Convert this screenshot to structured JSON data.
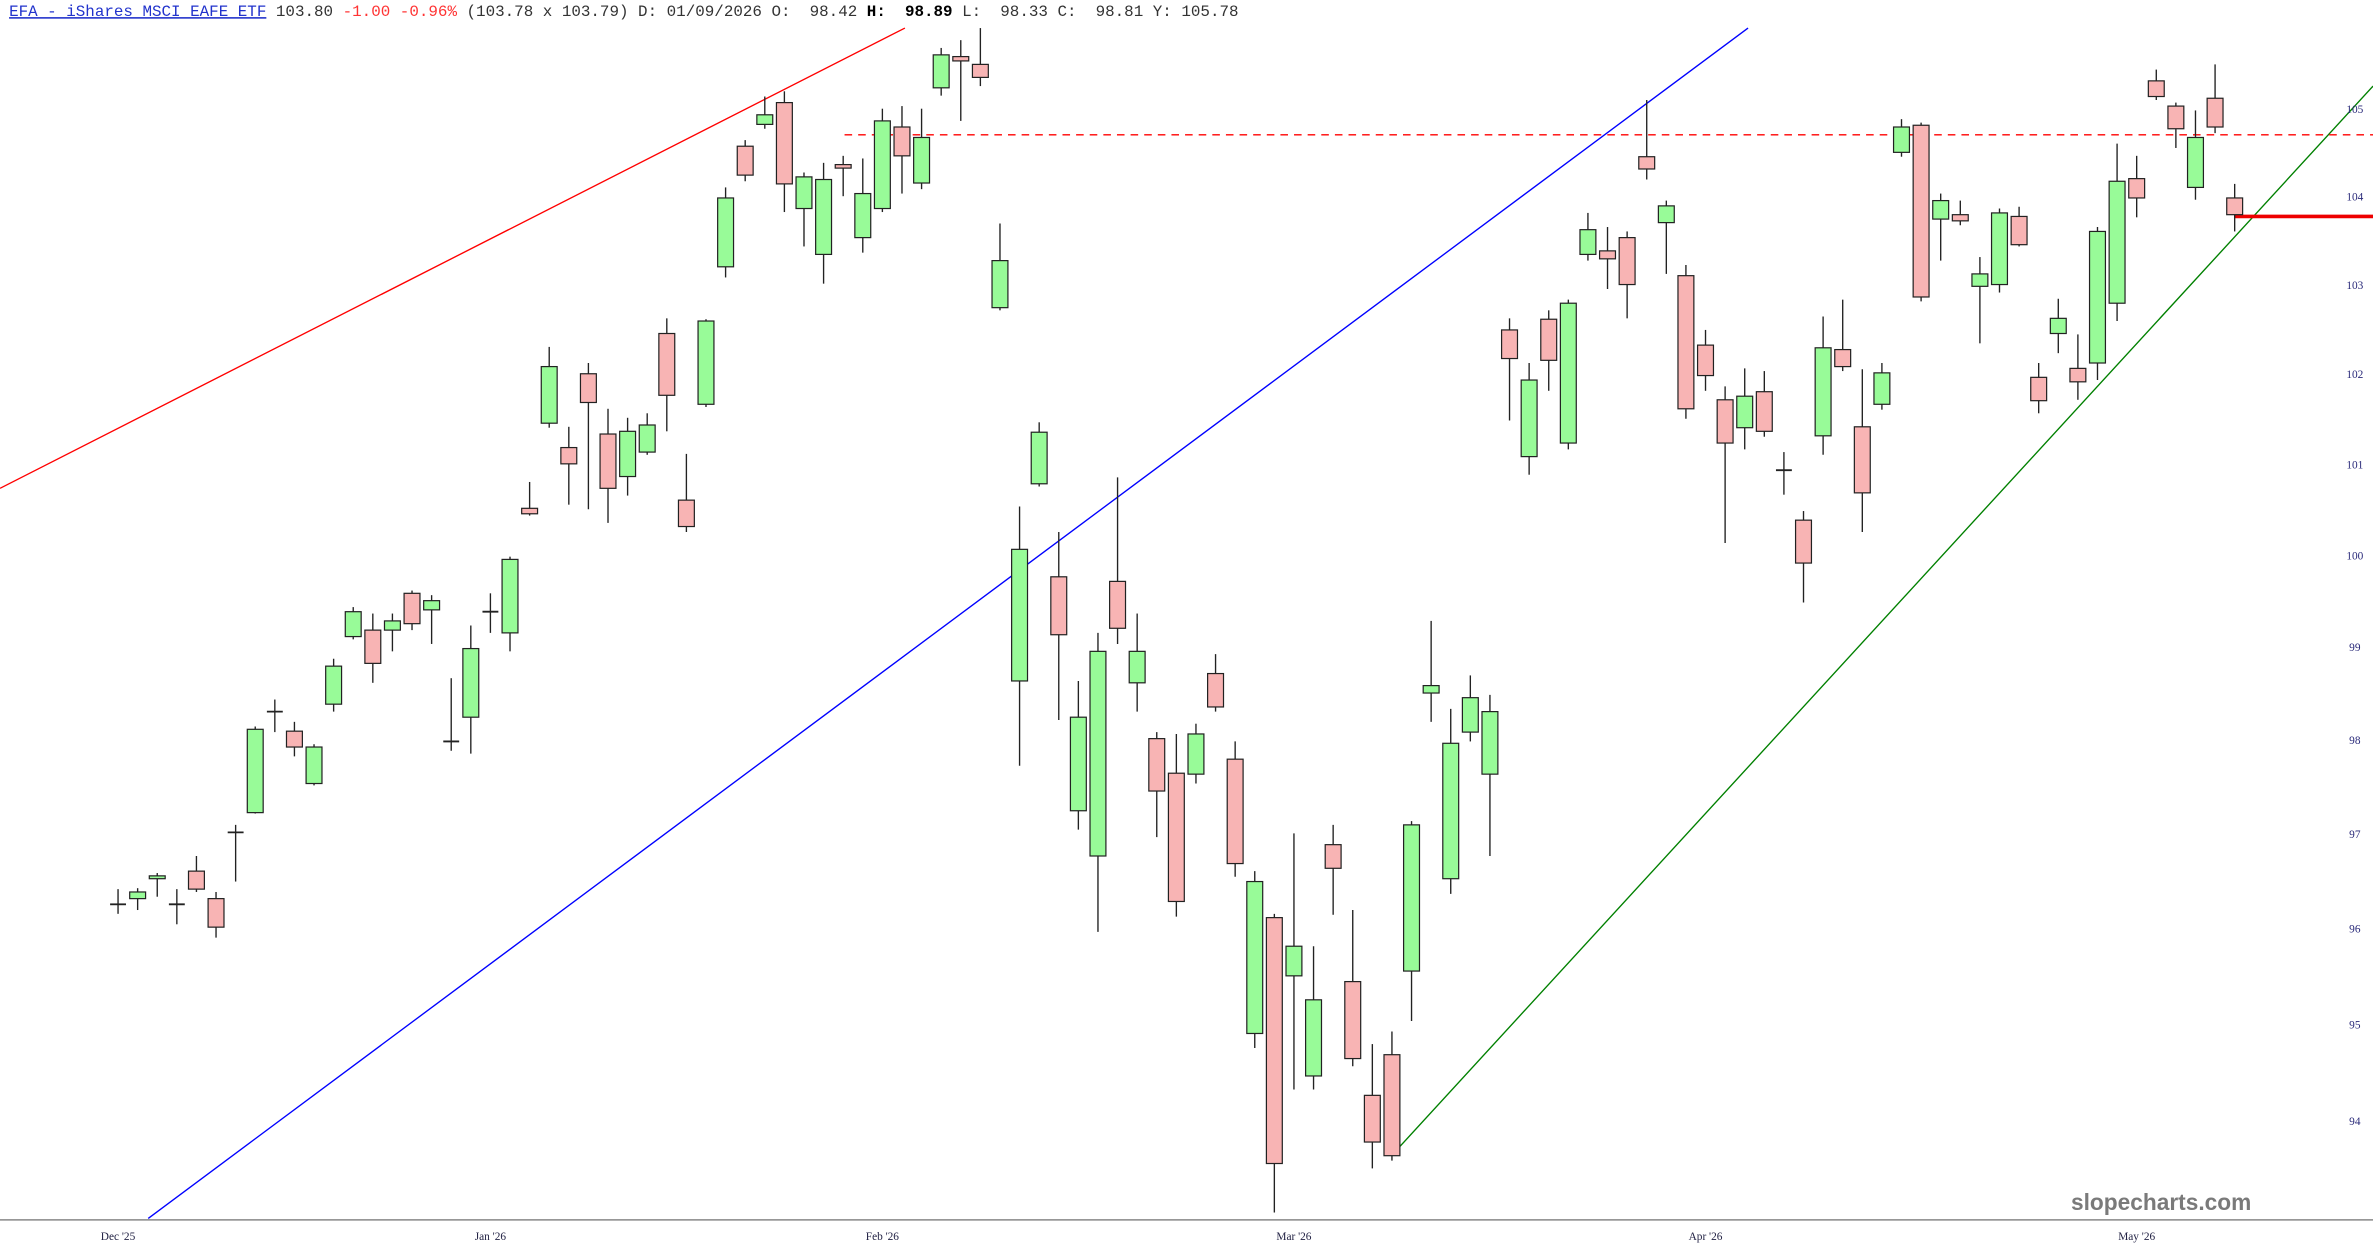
{
  "header": {
    "symbol": "EFA - iShares MSCI EAFE ETF",
    "last": "103.80",
    "change": "-1.00",
    "change_pct": "-0.96%",
    "bid_ask": "(103.78 x 103.79)",
    "date": "D: 01/09/2026",
    "fields": [
      {
        "label": "O:",
        "value": "98.42"
      },
      {
        "label": "H:",
        "value": "98.89"
      },
      {
        "label": "L:",
        "value": "98.33"
      },
      {
        "label": "C:",
        "value": "98.81"
      },
      {
        "label": "Y:",
        "value": "105.78"
      }
    ]
  },
  "chart_data": {
    "type": "candlestick",
    "watermark": "slopecharts.com",
    "up_color": "#98fb98",
    "down_color": "#f8b4b4",
    "log_scale": true,
    "ylim": [
      93,
      106
    ],
    "yticks": [
      94,
      95,
      96,
      97,
      98,
      99,
      100,
      101,
      102,
      103,
      104,
      105
    ],
    "categories": [
      "Dec '25",
      null,
      null,
      null,
      null,
      null,
      null,
      null,
      null,
      null,
      null,
      null,
      null,
      null,
      null,
      null,
      null,
      null,
      null,
      "Jan '26",
      null,
      null,
      null,
      null,
      null,
      null,
      null,
      null,
      null,
      null,
      null,
      null,
      null,
      null,
      null,
      null,
      null,
      null,
      null,
      "Feb '26",
      null,
      null,
      null,
      null,
      null,
      null,
      null,
      null,
      null,
      null,
      null,
      null,
      null,
      null,
      null,
      null,
      null,
      null,
      null,
      null,
      "Mar '26",
      null,
      null,
      null,
      null,
      null,
      null,
      null,
      null,
      null,
      null,
      null,
      null,
      null,
      null,
      null,
      null,
      null,
      null,
      null,
      null,
      "Apr '26",
      null,
      null,
      null,
      null,
      null,
      null,
      null,
      null,
      null,
      null,
      null,
      null,
      null,
      null,
      null,
      null,
      null,
      null,
      null,
      null,
      null,
      "May '26",
      null,
      null,
      null,
      null,
      null
    ],
    "open": [
      96.27,
      96.33,
      96.54,
      96.27,
      96.62,
      96.33,
      97.03,
      97.24,
      98.32,
      98.11,
      97.55,
      98.4,
      99.13,
      99.2,
      99.2,
      99.6,
      99.42,
      98.0,
      98.26,
      99.4,
      99.17,
      100.53,
      101.47,
      101.2,
      102.02,
      101.35,
      100.88,
      101.15,
      102.47,
      100.62,
      101.68,
      103.22,
      104.59,
      104.84,
      105.09,
      103.88,
      103.36,
      104.38,
      103.55,
      103.88,
      104.81,
      104.17,
      105.26,
      105.62,
      105.53,
      102.76,
      98.65,
      100.8,
      99.78,
      97.26,
      96.78,
      99.73,
      98.63,
      98.03,
      97.66,
      97.65,
      98.73,
      97.81,
      94.92,
      96.13,
      95.52,
      94.48,
      96.9,
      95.46,
      94.28,
      94.7,
      95.57,
      98.52,
      96.54,
      98.1,
      97.65,
      102.51,
      101.1,
      102.63,
      101.25,
      103.36,
      103.4,
      103.55,
      104.47,
      103.72,
      103.12,
      102.34,
      101.73,
      101.42,
      101.82,
      100.95,
      100.4,
      101.33,
      102.29,
      101.43,
      101.68,
      104.52,
      104.83,
      103.76,
      103.81,
      103.0,
      103.02,
      103.79,
      101.98,
      102.47,
      102.08,
      102.14,
      102.81,
      104.22,
      105.34,
      105.05,
      104.12,
      105.14,
      104.0
    ],
    "high": [
      96.43,
      96.44,
      96.6,
      96.43,
      96.78,
      96.4,
      97.11,
      98.16,
      98.45,
      98.21,
      97.97,
      98.89,
      99.45,
      99.38,
      99.38,
      99.63,
      99.58,
      98.68,
      99.25,
      99.6,
      100.0,
      100.82,
      102.32,
      101.43,
      102.14,
      101.63,
      101.53,
      101.58,
      102.64,
      101.13,
      102.63,
      104.12,
      104.66,
      105.16,
      105.22,
      104.29,
      104.4,
      104.48,
      104.45,
      105.02,
      105.05,
      105.02,
      105.72,
      105.81,
      105.95,
      103.71,
      100.55,
      101.48,
      100.27,
      98.65,
      99.17,
      100.87,
      99.38,
      98.1,
      98.08,
      98.19,
      98.94,
      98.0,
      96.62,
      96.17,
      97.02,
      95.83,
      97.11,
      96.21,
      94.81,
      94.94,
      97.15,
      99.3,
      98.35,
      98.71,
      98.5,
      102.64,
      102.14,
      102.73,
      102.85,
      103.83,
      103.67,
      103.62,
      105.12,
      103.97,
      103.24,
      102.51,
      101.88,
      102.08,
      102.05,
      101.15,
      100.5,
      102.66,
      102.85,
      102.07,
      102.14,
      104.9,
      104.86,
      104.05,
      103.97,
      103.33,
      103.88,
      103.9,
      102.14,
      102.86,
      102.46,
      103.67,
      104.62,
      104.48,
      105.47,
      105.09,
      105.0,
      105.53,
      104.16
    ],
    "low": [
      96.17,
      96.21,
      96.35,
      96.06,
      96.4,
      95.92,
      96.51,
      97.23,
      98.1,
      97.84,
      97.53,
      98.32,
      99.1,
      98.63,
      98.97,
      99.2,
      99.05,
      97.9,
      97.87,
      99.17,
      98.97,
      100.45,
      101.42,
      100.57,
      100.52,
      100.37,
      100.67,
      101.12,
      101.38,
      100.27,
      101.65,
      103.1,
      104.19,
      104.79,
      103.84,
      103.45,
      103.03,
      104.02,
      103.38,
      103.84,
      104.05,
      104.1,
      105.17,
      104.88,
      105.28,
      102.73,
      97.74,
      100.77,
      98.23,
      97.06,
      95.98,
      99.05,
      98.32,
      96.98,
      96.14,
      97.55,
      98.32,
      96.56,
      94.77,
      93.08,
      94.34,
      94.34,
      96.16,
      94.58,
      93.53,
      93.61,
      95.05,
      98.21,
      96.38,
      98.0,
      96.78,
      101.5,
      100.9,
      101.83,
      101.18,
      103.29,
      102.97,
      102.64,
      104.21,
      103.14,
      101.52,
      101.83,
      100.15,
      101.18,
      101.32,
      100.68,
      99.5,
      101.12,
      102.05,
      100.27,
      101.62,
      104.47,
      102.83,
      103.29,
      103.69,
      102.36,
      102.93,
      103.45,
      101.58,
      102.25,
      101.73,
      101.95,
      102.61,
      103.78,
      105.12,
      104.57,
      103.98,
      104.74,
      103.62
    ],
    "close": [
      96.27,
      96.4,
      96.57,
      96.27,
      96.43,
      96.03,
      97.03,
      98.13,
      98.32,
      97.94,
      97.94,
      98.81,
      99.4,
      98.84,
      99.3,
      99.27,
      99.52,
      98.0,
      99.0,
      99.4,
      99.97,
      100.47,
      102.1,
      101.02,
      101.7,
      100.75,
      101.38,
      101.45,
      101.78,
      100.33,
      102.61,
      104.0,
      104.26,
      104.95,
      104.16,
      104.24,
      104.21,
      104.34,
      104.05,
      104.88,
      104.48,
      104.69,
      105.64,
      105.57,
      105.38,
      103.29,
      100.08,
      101.37,
      99.15,
      98.26,
      98.97,
      99.22,
      98.97,
      97.47,
      96.3,
      98.08,
      98.37,
      96.7,
      96.51,
      93.58,
      95.83,
      95.27,
      96.65,
      94.66,
      93.8,
      93.66,
      97.11,
      98.6,
      97.98,
      98.47,
      98.32,
      102.19,
      101.95,
      102.17,
      102.81,
      103.64,
      103.31,
      103.02,
      104.33,
      103.91,
      101.63,
      102.0,
      101.25,
      101.77,
      101.38,
      100.95,
      99.93,
      102.31,
      102.1,
      100.7,
      102.03,
      104.81,
      102.88,
      103.97,
      103.74,
      103.14,
      103.83,
      103.47,
      101.72,
      102.64,
      101.93,
      103.62,
      104.19,
      104.0,
      105.16,
      104.79,
      104.69,
      104.81,
      103.81
    ],
    "trendlines": [
      {
        "color": "#ff0000",
        "style": "solid",
        "x": [
          -6.02,
          40.15
        ],
        "values": [
          100.75,
          105.95
        ]
      },
      {
        "color": "#0000ff",
        "style": "solid",
        "x": [
          1.54,
          83.17
        ],
        "values": [
          93.02,
          105.95
        ]
      },
      {
        "color": "#008000",
        "style": "solid",
        "x": [
          65.02,
          115.06
        ],
        "values": [
          93.67,
          105.28
        ]
      },
      {
        "color": "#ff0000",
        "style": "dashed",
        "x": [
          37.07,
          115.06
        ],
        "values": [
          104.72,
          104.72
        ]
      },
      {
        "color": "#ee0000",
        "style": "thick",
        "x": [
          108,
          115.06
        ],
        "values": [
          103.79,
          103.79
        ]
      }
    ]
  }
}
